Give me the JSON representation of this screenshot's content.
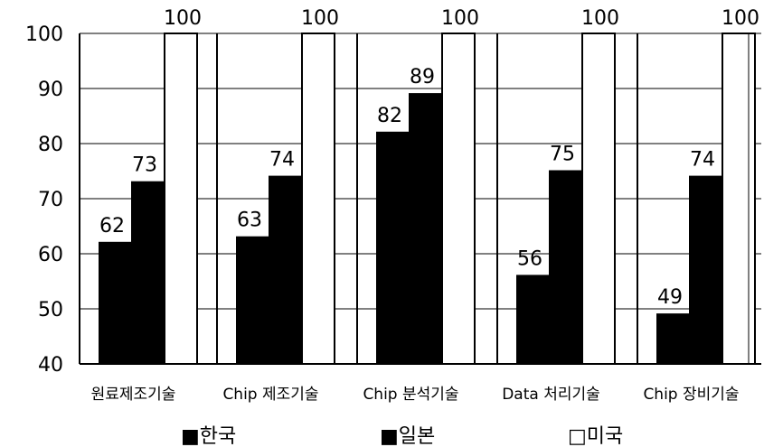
{
  "chart_data": {
    "type": "bar",
    "categories": [
      "원료제조기술",
      "Chip 제조기술",
      "Chip 분석기술",
      "Data 처리기술",
      "Chip 장비기술"
    ],
    "series": [
      {
        "name": "한국",
        "values": [
          62,
          63,
          82,
          56,
          49
        ],
        "color": "#000000"
      },
      {
        "name": "일본",
        "values": [
          73,
          74,
          89,
          75,
          74
        ],
        "color": "#000000"
      },
      {
        "name": "미국",
        "values": [
          100,
          100,
          100,
          100,
          100
        ],
        "color": "#ffffff"
      }
    ],
    "ylim": [
      40,
      100
    ],
    "yticks": [
      40,
      50,
      60,
      70,
      80,
      90,
      100
    ],
    "ytick_labels": [
      "40",
      "50",
      "60",
      "70",
      "80",
      "90",
      "100"
    ],
    "grid": true,
    "legend_position": "bottom",
    "legend": [
      {
        "label": "한국",
        "marker": "■"
      },
      {
        "label": "일본",
        "marker": "■"
      },
      {
        "label": "미국",
        "marker": "□"
      }
    ]
  }
}
